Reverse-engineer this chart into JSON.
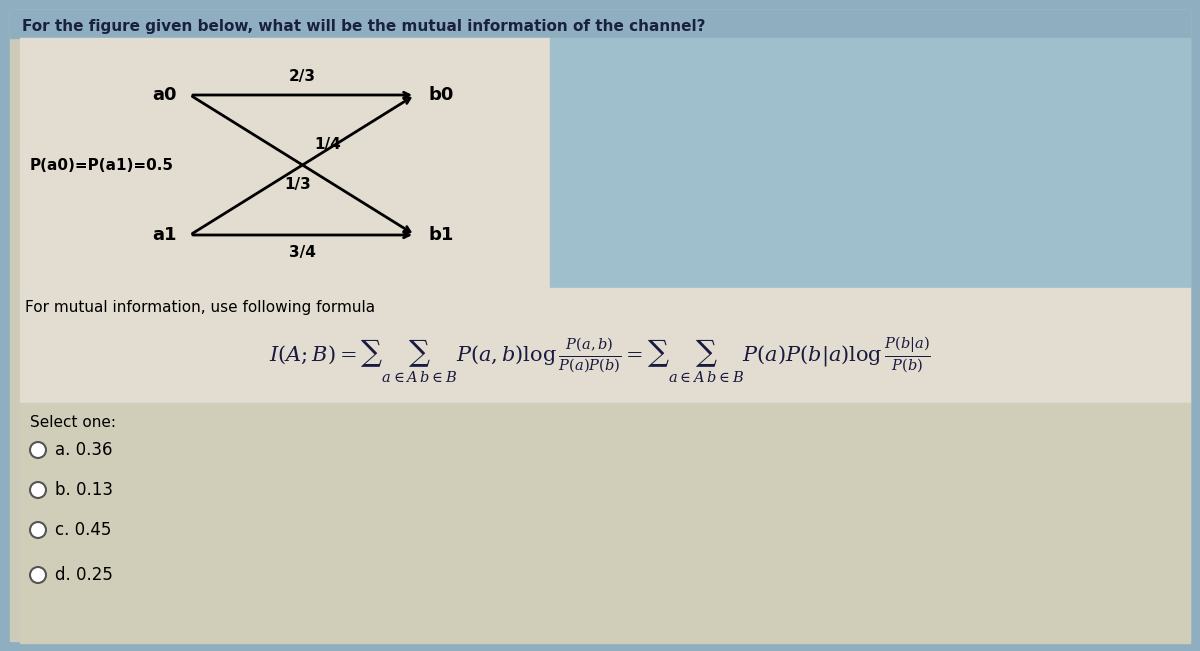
{
  "title": "For the figure given below, what will be the mutual information of the channel?",
  "bg_top": "#b8cdd8",
  "bg_diagram": "#e8e0d0",
  "bg_formula": "#e8e0d0",
  "bg_bottom": "#d0cfc0",
  "text_color": "#1a1a2e",
  "node_a0": "a0",
  "node_a1": "a1",
  "node_b0": "b0",
  "node_b1": "b1",
  "prob_label": "P(a0)=P(a1)=0.5",
  "p_a0b0": "2/3",
  "p_a0b1": "1/4",
  "p_a1b0": "1/3",
  "p_a1b1": "3/4",
  "formula_label": "For mutual information, use following formula",
  "select_one": "Select one:",
  "options": [
    "a. 0.36",
    "b. 0.13",
    "c. 0.45",
    "d. 0.25"
  ]
}
